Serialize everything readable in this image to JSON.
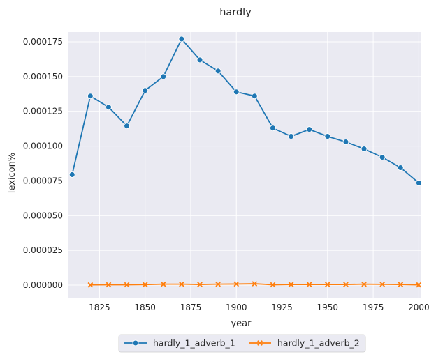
{
  "chart_data": {
    "type": "line",
    "title": "hardly",
    "xlabel": "year",
    "ylabel": "lexicon%",
    "xlim": [
      1808,
      2001
    ],
    "ylim": [
      -9e-06,
      0.000182
    ],
    "x_ticks": [
      1825,
      1850,
      1875,
      1900,
      1925,
      1950,
      1975,
      2000
    ],
    "y_ticks": [
      0.0,
      2.5e-05,
      5e-05,
      7.5e-05,
      0.0001,
      0.000125,
      0.00015,
      0.000175
    ],
    "x_tick_labels": [
      "1825",
      "1850",
      "1875",
      "1900",
      "1925",
      "1950",
      "1975",
      "2000"
    ],
    "y_tick_labels": [
      "0.000000",
      "0.000025",
      "0.000050",
      "0.000075",
      "0.000100",
      "0.000125",
      "0.000150",
      "0.000175"
    ],
    "grid": true,
    "legend_position": "bottom-center",
    "series": [
      {
        "name": "hardly_1_adverb_1",
        "color": "#1f77b4",
        "marker": "circle",
        "x": [
          1810,
          1820,
          1830,
          1840,
          1850,
          1860,
          1870,
          1880,
          1890,
          1900,
          1910,
          1920,
          1930,
          1940,
          1950,
          1960,
          1970,
          1980,
          1990,
          2000
        ],
        "y": [
          7.95e-05,
          0.000136,
          0.000128,
          0.0001145,
          0.00014,
          0.00015,
          0.000177,
          0.000162,
          0.000154,
          0.000139,
          0.000136,
          0.000113,
          0.000107,
          0.000112,
          0.000107,
          0.000103,
          9.8e-05,
          9.2e-05,
          8.45e-05,
          7.35e-05
        ]
      },
      {
        "name": "hardly_1_adverb_2",
        "color": "#ff7f0e",
        "marker": "x",
        "x": [
          1820,
          1830,
          1840,
          1850,
          1860,
          1870,
          1880,
          1890,
          1900,
          1910,
          1920,
          1930,
          1940,
          1950,
          1960,
          1970,
          1980,
          1990,
          2000
        ],
        "y": [
          2e-07,
          3e-07,
          3e-07,
          4e-07,
          7e-07,
          7e-07,
          5e-07,
          7e-07,
          8e-07,
          1e-06,
          3e-07,
          5e-07,
          5e-07,
          5e-07,
          5e-07,
          7e-07,
          6e-07,
          5e-07,
          2e-07
        ]
      }
    ]
  }
}
